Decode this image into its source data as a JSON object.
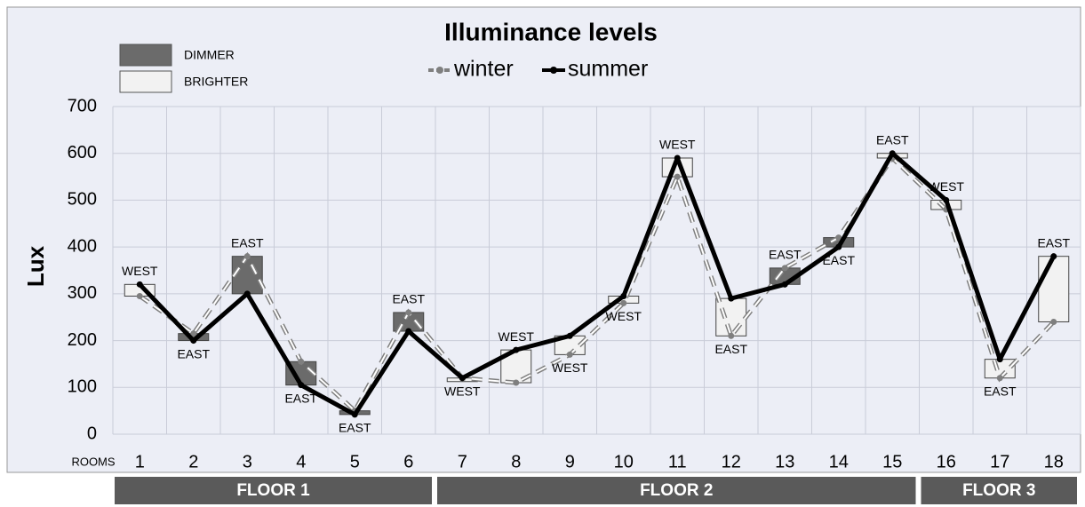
{
  "chart_data": {
    "type": "line",
    "title": "Illuminance levels",
    "y_label": "Lux",
    "x_label": "ROOMS",
    "categories": [
      "1",
      "2",
      "3",
      "4",
      "5",
      "6",
      "7",
      "8",
      "9",
      "10",
      "11",
      "12",
      "13",
      "14",
      "15",
      "16",
      "17",
      "18"
    ],
    "series": [
      {
        "name": "winter",
        "color": "#7f7f7f",
        "dash": true,
        "values": [
          295,
          215,
          380,
          155,
          50,
          260,
          120,
          110,
          170,
          280,
          550,
          210,
          355,
          420,
          590,
          480,
          120,
          240
        ]
      },
      {
        "name": "summer",
        "color": "#000000",
        "dash": false,
        "values": [
          320,
          200,
          300,
          105,
          42,
          220,
          120,
          180,
          210,
          295,
          590,
          290,
          320,
          400,
          600,
          500,
          160,
          380
        ]
      }
    ],
    "orientation": [
      "WEST",
      "EAST",
      "EAST",
      "EAST",
      "EAST",
      "EAST",
      "WEST",
      "WEST",
      "WEST",
      "WEST",
      "WEST",
      "EAST",
      "EAST",
      "EAST",
      "EAST",
      "WEST",
      "EAST",
      "EAST"
    ],
    "floor": [
      "FLOOR 1",
      "FLOOR 1",
      "FLOOR 1",
      "FLOOR 1",
      "FLOOR 1",
      "FLOOR 1",
      "FLOOR 2",
      "FLOOR 2",
      "FLOOR 2",
      "FLOOR 2",
      "FLOOR 2",
      "FLOOR 2",
      "FLOOR 2",
      "FLOOR 2",
      "FLOOR 2",
      "FLOOR 3",
      "FLOOR 3",
      "FLOOR 3"
    ],
    "box_legend": [
      {
        "name": "DIMMER",
        "color": "#6b6b6b"
      },
      {
        "name": "BRIGHTER",
        "color": "#f2f2f2"
      }
    ],
    "ylim": [
      0,
      700
    ],
    "yticks": [
      0,
      100,
      200,
      300,
      400,
      500,
      600,
      700
    ],
    "grid": true
  }
}
